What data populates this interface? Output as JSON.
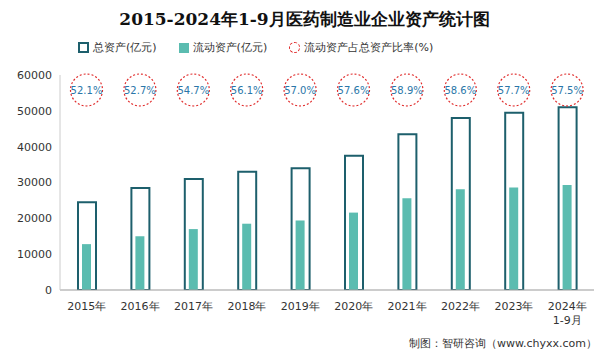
{
  "chart_data": {
    "type": "bar",
    "title": "2015-2024年1-9月医药制造业企业资产统计图",
    "categories": [
      "2015年",
      "2016年",
      "2017年",
      "2018年",
      "2019年",
      "2020年",
      "2021年",
      "2022年",
      "2023年",
      "2024年\n1-9月"
    ],
    "series": [
      {
        "name": "总资产(亿元)",
        "type": "bar",
        "color": "#1d5f6c",
        "values": [
          24500,
          28500,
          31000,
          33000,
          34000,
          37500,
          43500,
          48000,
          49500,
          51000
        ]
      },
      {
        "name": "流动资产(亿元)",
        "type": "bar",
        "color": "#5bbcb0",
        "values": [
          12800,
          15000,
          17000,
          18500,
          19400,
          21600,
          25600,
          28100,
          28600,
          29300
        ]
      },
      {
        "name": "流动资产占总资产比率(%)",
        "type": "label",
        "color": "#e02a2a",
        "values": [
          52.1,
          52.7,
          54.7,
          56.1,
          57.0,
          57.6,
          58.9,
          58.6,
          57.7,
          57.5
        ],
        "value_labels": [
          "52.1%",
          "52.7%",
          "54.7%",
          "56.1%",
          "57.0%",
          "57.6%",
          "58.9%",
          "58.6%",
          "57.7%",
          "57.5%"
        ],
        "data_labels": true
      }
    ],
    "ylim": [
      0,
      60000
    ],
    "yticks": [
      0,
      10000,
      20000,
      30000,
      40000,
      50000,
      60000
    ],
    "grid": false,
    "legend": "top-left",
    "source": "制图：智研咨询（www.chyxx.com）"
  }
}
